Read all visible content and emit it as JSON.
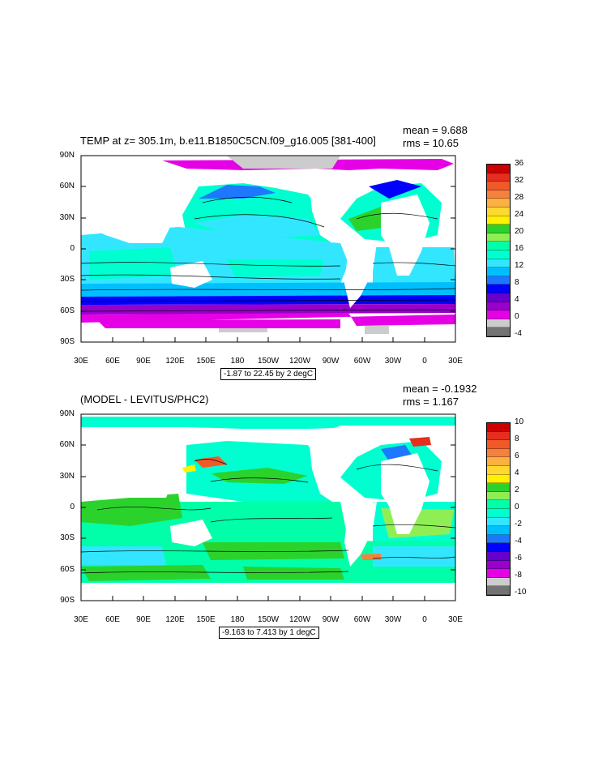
{
  "panels": [
    {
      "title": "TEMP at z= 305.1m, b.e11.B1850C5CN.f09_g16.005 [381-400]",
      "mean": "mean = 9.688",
      "rms": "rms = 10.65",
      "contour_info": "-1.87 to 22.45 by 2 degC",
      "colorbar_labels": [
        "36",
        "32",
        "28",
        "24",
        "20",
        "16",
        "12",
        "8",
        "4",
        "0",
        "-4"
      ],
      "colorbar_colors": [
        "#cc0000",
        "#e62e1e",
        "#f05a28",
        "#f5823c",
        "#fbb040",
        "#ffd92f",
        "#fff200",
        "#2cd22c",
        "#90ee55",
        "#00ffa8",
        "#00ffd0",
        "#33e6ff",
        "#00bfff",
        "#1e78ff",
        "#0000ff",
        "#6600cc",
        "#9900cc",
        "#e600e6",
        "#cccccc",
        "#737373"
      ]
    },
    {
      "title": "(MODEL - LEVITUS/PHC2)",
      "mean": "mean = -0.1932",
      "rms": "rms = 1.167",
      "contour_info": "-9.163 to 7.413 by 1 degC",
      "colorbar_labels": [
        "10",
        "8",
        "6",
        "4",
        "2",
        "0",
        "-2",
        "-4",
        "-6",
        "-8",
        "-10"
      ],
      "colorbar_colors": [
        "#cc0000",
        "#e62e1e",
        "#f05a28",
        "#f5823c",
        "#fbb040",
        "#ffd92f",
        "#fff200",
        "#2cd22c",
        "#90ee55",
        "#00ffa8",
        "#00ffd0",
        "#33e6ff",
        "#00bfff",
        "#1e78ff",
        "#0000ff",
        "#6600cc",
        "#9900cc",
        "#e600e6",
        "#cccccc",
        "#737373"
      ]
    }
  ],
  "lat_labels": [
    "90N",
    "60N",
    "30N",
    "0",
    "30S",
    "60S",
    "90S"
  ],
  "lon_labels": [
    "30E",
    "60E",
    "90E",
    "120E",
    "150E",
    "180",
    "150W",
    "120W",
    "90W",
    "60W",
    "30W",
    "0",
    "30E"
  ]
}
